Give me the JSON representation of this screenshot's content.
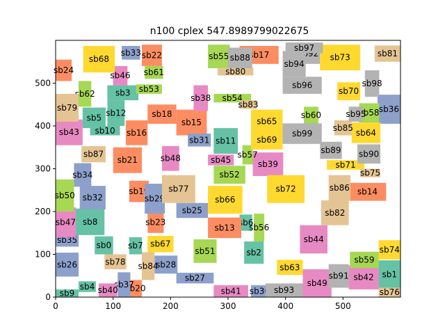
{
  "chart_data": {
    "type": "rectangle-packing",
    "title": "n100 cplex 547.8989799022675",
    "xlabel": "",
    "ylabel": "",
    "xlim": [
      0,
      600
    ],
    "ylim": [
      0,
      600
    ],
    "xticks": [
      0,
      100,
      200,
      300,
      400,
      500
    ],
    "yticks": [
      0,
      100,
      200,
      300,
      400,
      500
    ],
    "grid": false,
    "palette": {
      "teal": "#66c2a5",
      "orange": "#fc8d62",
      "blue": "#8da0cb",
      "pink": "#e78ac3",
      "green": "#a6d854",
      "yellow": "#ffd92f",
      "tan": "#e5c494",
      "gray": "#b3b3b3"
    },
    "rects": [
      {
        "label": "sb0",
        "x": 68,
        "y": 100,
        "w": 32,
        "h": 42,
        "color": "teal"
      },
      {
        "label": "sb1",
        "x": 562,
        "y": 20,
        "w": 38,
        "h": 66,
        "color": "teal"
      },
      {
        "label": "sb2",
        "x": 328,
        "y": 78,
        "w": 34,
        "h": 52,
        "color": "teal"
      },
      {
        "label": "sb3",
        "x": 90,
        "y": 460,
        "w": 54,
        "h": 35,
        "color": "teal"
      },
      {
        "label": "sb4",
        "x": 40,
        "y": 12,
        "w": 30,
        "h": 25,
        "color": "teal"
      },
      {
        "label": "sb5",
        "x": 47,
        "y": 395,
        "w": 40,
        "h": 48,
        "color": "teal"
      },
      {
        "label": "sb6",
        "x": 320,
        "y": 155,
        "w": 22,
        "h": 38,
        "color": "teal"
      },
      {
        "label": "sb7",
        "x": 128,
        "y": 100,
        "w": 22,
        "h": 40,
        "color": "teal"
      },
      {
        "label": "sb8",
        "x": 35,
        "y": 145,
        "w": 50,
        "h": 62,
        "color": "teal"
      },
      {
        "label": "sb9",
        "x": 0,
        "y": 0,
        "w": 40,
        "h": 18,
        "color": "teal"
      },
      {
        "label": "sb10",
        "x": 60,
        "y": 378,
        "w": 52,
        "h": 22,
        "color": "teal"
      },
      {
        "label": "sb11",
        "x": 275,
        "y": 335,
        "w": 42,
        "h": 60,
        "color": "teal"
      },
      {
        "label": "sb12",
        "x": 90,
        "y": 400,
        "w": 30,
        "h": 60,
        "color": "teal"
      },
      {
        "label": "sb13",
        "x": 265,
        "y": 138,
        "w": 58,
        "h": 48,
        "color": "orange"
      },
      {
        "label": "sb14",
        "x": 510,
        "y": 225,
        "w": 65,
        "h": 42,
        "color": "orange"
      },
      {
        "label": "sb15",
        "x": 210,
        "y": 378,
        "w": 53,
        "h": 60,
        "color": "orange"
      },
      {
        "label": "sb16",
        "x": 122,
        "y": 355,
        "w": 38,
        "h": 58,
        "color": "orange"
      },
      {
        "label": "sb17",
        "x": 320,
        "y": 545,
        "w": 68,
        "h": 42,
        "color": "orange"
      },
      {
        "label": "sb18",
        "x": 160,
        "y": 405,
        "w": 50,
        "h": 45,
        "color": "orange"
      },
      {
        "label": "sb19",
        "x": 128,
        "y": 222,
        "w": 34,
        "h": 50,
        "color": "orange"
      },
      {
        "label": "sb20",
        "x": 128,
        "y": 0,
        "w": 22,
        "h": 40,
        "color": "orange"
      },
      {
        "label": "sb21",
        "x": 100,
        "y": 290,
        "w": 50,
        "h": 60,
        "color": "orange"
      },
      {
        "label": "sb22",
        "x": 150,
        "y": 540,
        "w": 35,
        "h": 50,
        "color": "orange"
      },
      {
        "label": "sb23",
        "x": 160,
        "y": 150,
        "w": 28,
        "h": 50,
        "color": "orange"
      },
      {
        "label": "sb24",
        "x": 0,
        "y": 505,
        "w": 28,
        "h": 50,
        "color": "orange"
      },
      {
        "label": "sb25",
        "x": 210,
        "y": 185,
        "w": 55,
        "h": 35,
        "color": "blue"
      },
      {
        "label": "sb26",
        "x": 0,
        "y": 48,
        "w": 40,
        "h": 56,
        "color": "blue"
      },
      {
        "label": "sb27",
        "x": 210,
        "y": 32,
        "w": 65,
        "h": 25,
        "color": "blue"
      },
      {
        "label": "sb28",
        "x": 172,
        "y": 55,
        "w": 40,
        "h": 42,
        "color": "blue"
      },
      {
        "label": "sb29",
        "x": 155,
        "y": 195,
        "w": 35,
        "h": 70,
        "color": "blue"
      },
      {
        "label": "sb30",
        "x": 340,
        "y": 0,
        "w": 30,
        "h": 28,
        "color": "blue"
      },
      {
        "label": "sb31",
        "x": 230,
        "y": 352,
        "w": 40,
        "h": 30,
        "color": "blue"
      },
      {
        "label": "sb32",
        "x": 42,
        "y": 205,
        "w": 45,
        "h": 55,
        "color": "blue"
      },
      {
        "label": "sb33",
        "x": 115,
        "y": 555,
        "w": 32,
        "h": 32,
        "color": "blue"
      },
      {
        "label": "sb34",
        "x": 32,
        "y": 258,
        "w": 30,
        "h": 55,
        "color": "blue"
      },
      {
        "label": "sb35",
        "x": 0,
        "y": 118,
        "w": 40,
        "h": 30,
        "color": "blue"
      },
      {
        "label": "sb36",
        "x": 560,
        "y": 405,
        "w": 40,
        "h": 68,
        "color": "blue"
      },
      {
        "label": "sb37",
        "x": 108,
        "y": 0,
        "w": 22,
        "h": 58,
        "color": "blue"
      },
      {
        "label": "sb38",
        "x": 240,
        "y": 435,
        "w": 25,
        "h": 60,
        "color": "pink"
      },
      {
        "label": "sb39",
        "x": 343,
        "y": 283,
        "w": 53,
        "h": 55,
        "color": "pink"
      },
      {
        "label": "sb40",
        "x": 75,
        "y": 0,
        "w": 32,
        "h": 32,
        "color": "pink"
      },
      {
        "label": "sb41",
        "x": 275,
        "y": 0,
        "w": 60,
        "h": 28,
        "color": "pink"
      },
      {
        "label": "sb42",
        "x": 510,
        "y": 18,
        "w": 52,
        "h": 56,
        "color": "pink"
      },
      {
        "label": "sb43",
        "x": 0,
        "y": 355,
        "w": 47,
        "h": 60,
        "color": "pink"
      },
      {
        "label": "sb44",
        "x": 425,
        "y": 102,
        "w": 48,
        "h": 66,
        "color": "pink"
      },
      {
        "label": "sb45",
        "x": 265,
        "y": 308,
        "w": 45,
        "h": 25,
        "color": "pink"
      },
      {
        "label": "sb46",
        "x": 100,
        "y": 495,
        "w": 25,
        "h": 45,
        "color": "pink"
      },
      {
        "label": "sb47",
        "x": 0,
        "y": 140,
        "w": 35,
        "h": 70,
        "color": "pink"
      },
      {
        "label": "sb48",
        "x": 185,
        "y": 295,
        "w": 30,
        "h": 58,
        "color": "pink"
      },
      {
        "label": "sb49",
        "x": 430,
        "y": 0,
        "w": 50,
        "h": 65,
        "color": "pink"
      },
      {
        "label": "sb50",
        "x": 0,
        "y": 200,
        "w": 32,
        "h": 75,
        "color": "green"
      },
      {
        "label": "sb51",
        "x": 240,
        "y": 80,
        "w": 40,
        "h": 55,
        "color": "green"
      },
      {
        "label": "sb52",
        "x": 275,
        "y": 265,
        "w": 55,
        "h": 42,
        "color": "green"
      },
      {
        "label": "sb53",
        "x": 140,
        "y": 475,
        "w": 45,
        "h": 22,
        "color": "green"
      },
      {
        "label": "sb54",
        "x": 275,
        "y": 455,
        "w": 65,
        "h": 20,
        "color": "green"
      },
      {
        "label": "sb55",
        "x": 265,
        "y": 535,
        "w": 38,
        "h": 55,
        "color": "green"
      },
      {
        "label": "sb56",
        "x": 345,
        "y": 130,
        "w": 18,
        "h": 65,
        "color": "green"
      },
      {
        "label": "sb57",
        "x": 325,
        "y": 310,
        "w": 18,
        "h": 45,
        "color": "green"
      },
      {
        "label": "sb58",
        "x": 528,
        "y": 408,
        "w": 35,
        "h": 45,
        "color": "green"
      },
      {
        "label": "sb59",
        "x": 512,
        "y": 68,
        "w": 50,
        "h": 38,
        "color": "green"
      },
      {
        "label": "sb60",
        "x": 432,
        "y": 405,
        "w": 25,
        "h": 40,
        "color": "green"
      },
      {
        "label": "sb61",
        "x": 155,
        "y": 510,
        "w": 32,
        "h": 30,
        "color": "green"
      },
      {
        "label": "sb62",
        "x": 40,
        "y": 445,
        "w": 22,
        "h": 60,
        "color": "green"
      },
      {
        "label": "sb63",
        "x": 385,
        "y": 52,
        "w": 45,
        "h": 35,
        "color": "yellow"
      },
      {
        "label": "sb64",
        "x": 515,
        "y": 360,
        "w": 50,
        "h": 48,
        "color": "yellow"
      },
      {
        "label": "sb65",
        "x": 340,
        "y": 383,
        "w": 55,
        "h": 55,
        "color": "yellow"
      },
      {
        "label": "sb66",
        "x": 265,
        "y": 195,
        "w": 60,
        "h": 65,
        "color": "yellow"
      },
      {
        "label": "sb67",
        "x": 160,
        "y": 105,
        "w": 45,
        "h": 38,
        "color": "yellow"
      },
      {
        "label": "sb68",
        "x": 48,
        "y": 525,
        "w": 55,
        "h": 62,
        "color": "yellow"
      },
      {
        "label": "sb69",
        "x": 340,
        "y": 345,
        "w": 55,
        "h": 45,
        "color": "yellow"
      },
      {
        "label": "sb70",
        "x": 490,
        "y": 460,
        "w": 40,
        "h": 42,
        "color": "yellow"
      },
      {
        "label": "sb71",
        "x": 472,
        "y": 298,
        "w": 65,
        "h": 22,
        "color": "yellow"
      },
      {
        "label": "sb72",
        "x": 368,
        "y": 220,
        "w": 65,
        "h": 65,
        "color": "yellow"
      },
      {
        "label": "sb73",
        "x": 460,
        "y": 530,
        "w": 70,
        "h": 60,
        "color": "yellow"
      },
      {
        "label": "sb74",
        "x": 562,
        "y": 88,
        "w": 38,
        "h": 45,
        "color": "yellow"
      },
      {
        "label": "sb75",
        "x": 530,
        "y": 280,
        "w": 35,
        "h": 20,
        "color": "tan"
      },
      {
        "label": "sb76",
        "x": 562,
        "y": 0,
        "w": 38,
        "h": 22,
        "color": "tan"
      },
      {
        "label": "sb77",
        "x": 185,
        "y": 220,
        "w": 58,
        "h": 65,
        "color": "tan"
      },
      {
        "label": "sb78",
        "x": 85,
        "y": 65,
        "w": 38,
        "h": 35,
        "color": "tan"
      },
      {
        "label": "sb79",
        "x": 0,
        "y": 410,
        "w": 40,
        "h": 65,
        "color": "tan"
      },
      {
        "label": "sb80",
        "x": 282,
        "y": 518,
        "w": 62,
        "h": 18,
        "color": "tan"
      },
      {
        "label": "sb81",
        "x": 555,
        "y": 550,
        "w": 45,
        "h": 38,
        "color": "tan"
      },
      {
        "label": "sb82",
        "x": 462,
        "y": 168,
        "w": 48,
        "h": 58,
        "color": "tan"
      },
      {
        "label": "sb83",
        "x": 320,
        "y": 440,
        "w": 30,
        "h": 20,
        "color": "tan"
      },
      {
        "label": "sb84",
        "x": 150,
        "y": 40,
        "w": 22,
        "h": 65,
        "color": "tan"
      },
      {
        "label": "sb85",
        "x": 485,
        "y": 378,
        "w": 30,
        "h": 35,
        "color": "tan"
      },
      {
        "label": "sb86",
        "x": 475,
        "y": 225,
        "w": 38,
        "h": 60,
        "color": "tan"
      },
      {
        "label": "sb87",
        "x": 45,
        "y": 315,
        "w": 42,
        "h": 38,
        "color": "tan"
      },
      {
        "label": "sb88",
        "x": 300,
        "y": 535,
        "w": 42,
        "h": 48,
        "color": "gray"
      },
      {
        "label": "sb89",
        "x": 460,
        "y": 323,
        "w": 38,
        "h": 40,
        "color": "gray"
      },
      {
        "label": "sb90",
        "x": 525,
        "y": 312,
        "w": 40,
        "h": 45,
        "color": "gray"
      },
      {
        "label": "sb91",
        "x": 475,
        "y": 22,
        "w": 35,
        "h": 55,
        "color": "gray"
      },
      {
        "label": "sb92",
        "x": 420,
        "y": 545,
        "w": 40,
        "h": 48,
        "color": "gray"
      },
      {
        "label": "sb93",
        "x": 365,
        "y": 0,
        "w": 65,
        "h": 32,
        "color": "gray"
      },
      {
        "label": "sb94",
        "x": 395,
        "y": 515,
        "w": 40,
        "h": 60,
        "color": "gray"
      },
      {
        "label": "sb95",
        "x": 510,
        "y": 410,
        "w": 25,
        "h": 35,
        "color": "gray"
      },
      {
        "label": "sb96",
        "x": 395,
        "y": 475,
        "w": 68,
        "h": 40,
        "color": "gray"
      },
      {
        "label": "sb97",
        "x": 400,
        "y": 570,
        "w": 65,
        "h": 25,
        "color": "gray"
      },
      {
        "label": "sb98",
        "x": 538,
        "y": 468,
        "w": 25,
        "h": 62,
        "color": "gray"
      },
      {
        "label": "sb99",
        "x": 395,
        "y": 358,
        "w": 68,
        "h": 48,
        "color": "gray"
      }
    ]
  }
}
